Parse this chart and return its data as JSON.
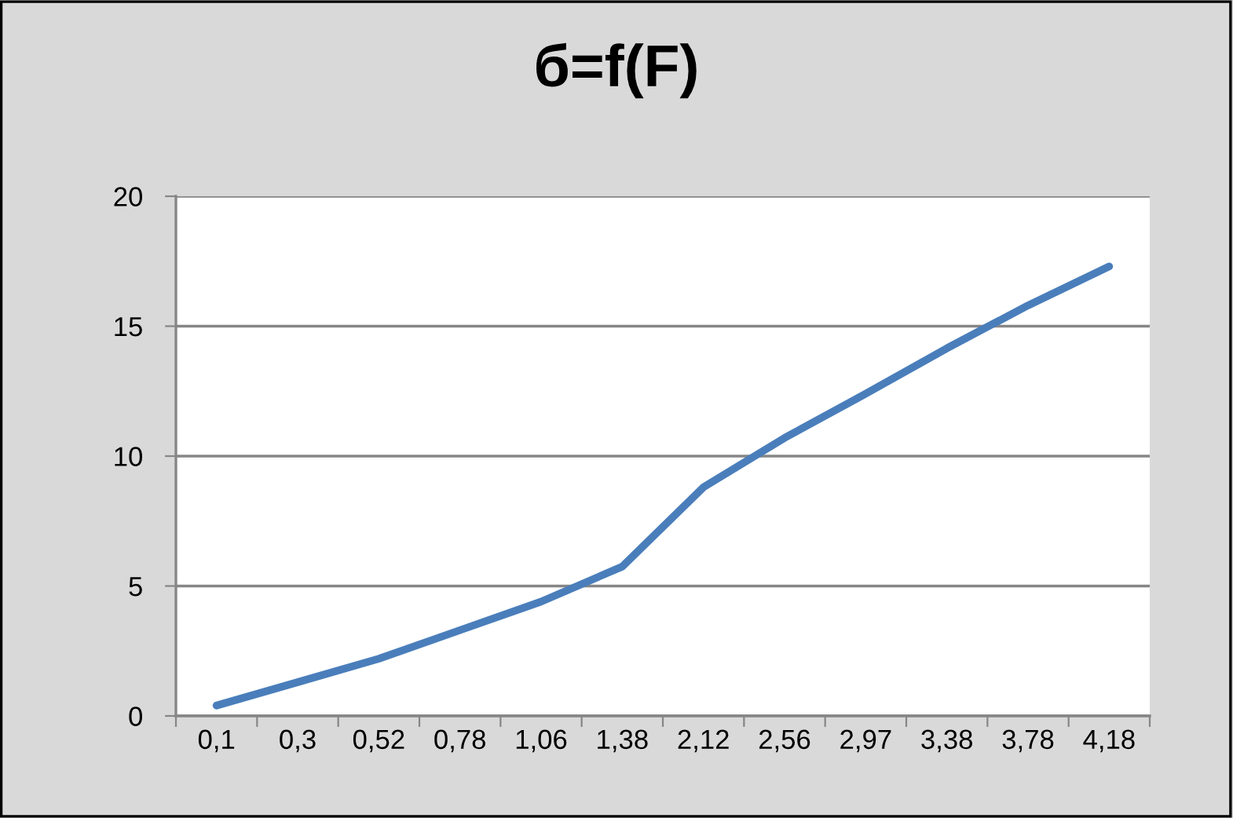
{
  "chart_data": {
    "type": "line",
    "title": "б=f(F)",
    "categories": [
      "0,1",
      "0,3",
      "0,52",
      "0,78",
      "1,06",
      "1,38",
      "2,12",
      "2,56",
      "2,97",
      "3,38",
      "3,78",
      "4,18"
    ],
    "series": [
      {
        "color": "#4a7ebb",
        "values": [
          0.4,
          1.3,
          2.2,
          3.3,
          4.4,
          5.75,
          8.8,
          10.7,
          12.4,
          14.15,
          15.8,
          17.3
        ]
      }
    ],
    "ylim": [
      0,
      20
    ],
    "yticks": [
      0,
      5,
      10,
      15,
      20
    ],
    "grid": "y",
    "marker": "none",
    "line_style": "solid"
  }
}
